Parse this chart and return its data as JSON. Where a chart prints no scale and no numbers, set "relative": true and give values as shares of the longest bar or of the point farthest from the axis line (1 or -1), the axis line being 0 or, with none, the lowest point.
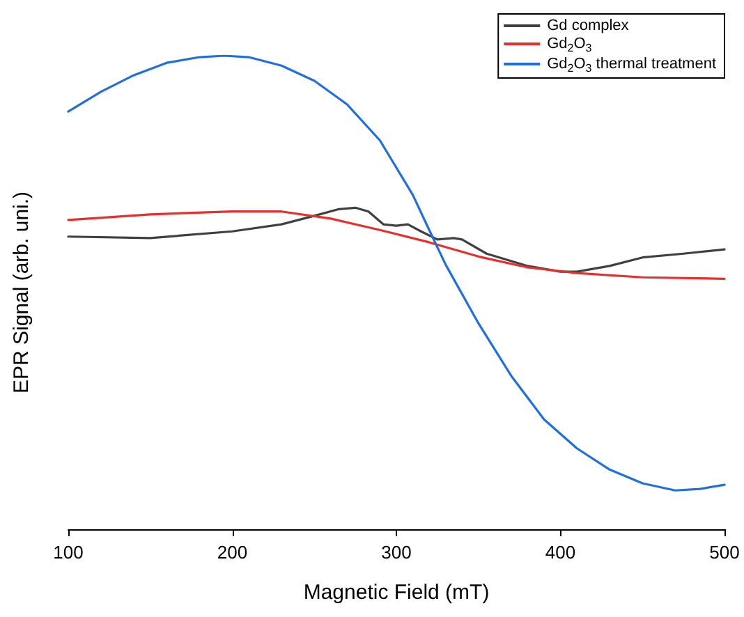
{
  "chart_data": {
    "type": "line",
    "relative": true,
    "xlabel": "Magnetic Field (mT)",
    "ylabel": "EPR Signal (arb. uni.)",
    "xlim": [
      100,
      500
    ],
    "xticks": [
      100,
      200,
      300,
      400,
      500
    ],
    "legend": "top right",
    "grid": false,
    "marker": "none",
    "line_style": "solid",
    "tick_labels": "x",
    "series": [
      {
        "name": "Gd complex",
        "color": "#404040",
        "x": [
          100,
          150,
          200,
          230,
          250,
          265,
          275,
          283,
          292,
          300,
          307,
          315,
          325,
          335,
          340,
          355,
          380,
          400,
          410,
          430,
          450,
          475,
          500
        ],
        "values": [
          0.618,
          0.615,
          0.629,
          0.644,
          0.662,
          0.676,
          0.679,
          0.671,
          0.644,
          0.641,
          0.644,
          0.629,
          0.612,
          0.615,
          0.612,
          0.582,
          0.556,
          0.544,
          0.544,
          0.556,
          0.574,
          0.582,
          0.591
        ]
      },
      {
        "name": "Gd$_{2}$O$_{3}$",
        "color": "#e8302a",
        "x": [
          100,
          150,
          200,
          230,
          260,
          290,
          320,
          350,
          380,
          410,
          450,
          500
        ],
        "values": [
          0.653,
          0.665,
          0.671,
          0.671,
          0.656,
          0.632,
          0.606,
          0.576,
          0.553,
          0.541,
          0.532,
          0.529
        ]
      },
      {
        "name": "Gd$_{2}$O$_{3}$ thermal treatment",
        "color": "#1f6fe0",
        "x": [
          100,
          120,
          140,
          160,
          180,
          195,
          210,
          230,
          250,
          270,
          290,
          310,
          320,
          330,
          350,
          370,
          390,
          410,
          430,
          450,
          470,
          485,
          500
        ],
        "values": [
          0.882,
          0.924,
          0.959,
          0.985,
          0.997,
          1,
          0.997,
          0.979,
          0.947,
          0.897,
          0.821,
          0.706,
          0.632,
          0.559,
          0.435,
          0.324,
          0.232,
          0.171,
          0.126,
          0.097,
          0.082,
          0.085,
          0.094
        ]
      }
    ]
  }
}
